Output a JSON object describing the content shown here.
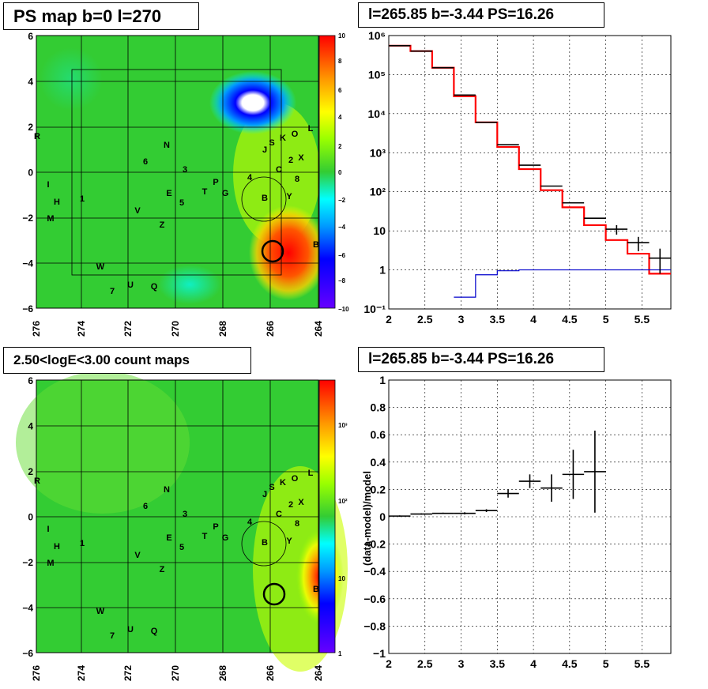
{
  "panels": {
    "tl_title": "PS map b=0 l=270",
    "tr_title": "l=265.85 b=-3.44 PS=16.26",
    "bl_title": "2.50<logE<3.00 count maps",
    "br_title": "l=265.85 b=-3.44 PS=16.26"
  },
  "maps": {
    "x_ticks": [
      "276",
      "274",
      "272",
      "270",
      "268",
      "266",
      "264"
    ],
    "y_ticks": [
      "6",
      "4",
      "2",
      "0",
      "−2",
      "−4",
      "−6"
    ],
    "colorbar_ts_ticks": [
      "10",
      "8",
      "6",
      "4",
      "2",
      "0",
      "−2",
      "−4",
      "−6",
      "−8",
      "−10"
    ],
    "colorbar_counts_ticks": [
      "10³",
      "10²",
      "10",
      "1"
    ],
    "source_labels": [
      "R",
      "I",
      "H",
      "M",
      "1",
      "N",
      "6",
      "3",
      "E",
      "5",
      "V",
      "Z",
      "W",
      "U",
      "7",
      "Q",
      "T",
      "P",
      "G",
      "4",
      "J",
      "S",
      "K",
      "O",
      "L",
      "2",
      "X",
      "C",
      "8",
      "Y",
      "B",
      "B"
    ],
    "colors": {
      "high": "#ff0000",
      "mid": "#33cc33",
      "low": "#3333ff",
      "zero": "#ffffff"
    }
  },
  "chart_data": [
    {
      "type": "line",
      "panel": "spectrum",
      "title": "l=265.85 b=-3.44 PS=16.26",
      "xlabel": "",
      "ylabel": "",
      "xlim": [
        2,
        5.9
      ],
      "ylim": [
        0.1,
        1000000
      ],
      "yscale": "log",
      "grid": true,
      "x_ticks": [
        "2",
        "2.5",
        "3",
        "3.5",
        "4",
        "4.5",
        "5",
        "5.5"
      ],
      "y_ticks": [
        "10⁻¹",
        "1",
        "10",
        "10²",
        "10³",
        "10⁴",
        "10⁵",
        "10⁶"
      ],
      "data_points": {
        "x": [
          2.15,
          2.45,
          2.75,
          3.05,
          3.35,
          3.65,
          3.95,
          4.25,
          4.55,
          4.85,
          5.15,
          5.45,
          5.75
        ],
        "y": [
          550000,
          400000,
          150000,
          30000,
          6000,
          1600,
          480,
          140,
          52,
          21,
          11,
          5,
          2
        ],
        "yerr_low": [
          0,
          0,
          0,
          0,
          0,
          0,
          0,
          0,
          0,
          0,
          3,
          2,
          1.2
        ],
        "yerr_high": [
          0,
          0,
          0,
          0,
          0,
          0,
          0,
          0,
          0,
          0,
          3,
          2,
          1.5
        ]
      },
      "series": [
        {
          "name": "",
          "color": "#ff0000",
          "step_x": [
            2.0,
            2.3,
            2.6,
            2.9,
            3.2,
            3.5,
            3.8,
            4.1,
            4.4,
            4.7,
            5.0,
            5.3,
            5.6,
            5.9
          ],
          "values": [
            550000,
            400000,
            150000,
            28000,
            6000,
            1400,
            380,
            110,
            40,
            14,
            5.8,
            2.6,
            0.8
          ]
        },
        {
          "name": "",
          "color": "#0000cc",
          "step_x": [
            2.9,
            3.2,
            3.5,
            3.8,
            5.9
          ],
          "values": [
            0.2,
            0.75,
            0.95,
            1.0
          ]
        }
      ]
    },
    {
      "type": "scatter",
      "panel": "residuals",
      "title": "l=265.85 b=-3.44 PS=16.26",
      "xlabel": "",
      "ylabel": "(data-model)/model",
      "xlim": [
        2,
        5.9
      ],
      "ylim": [
        -1,
        1
      ],
      "grid": true,
      "x_ticks": [
        "2",
        "2.5",
        "3",
        "3.5",
        "4",
        "4.5",
        "5",
        "5.5"
      ],
      "y_ticks": [
        "1",
        "0.8",
        "0.6",
        "0.4",
        "0.2",
        "0",
        "−0.2",
        "−0.4",
        "−0.6",
        "−0.8",
        "−1"
      ],
      "x": [
        2.15,
        2.45,
        2.75,
        3.05,
        3.35,
        3.65,
        3.95,
        4.25,
        4.55,
        4.85
      ],
      "y": [
        0.005,
        0.02,
        0.025,
        0.025,
        0.045,
        0.17,
        0.26,
        0.21,
        0.31,
        0.33
      ],
      "yerr": [
        0.005,
        0.005,
        0.005,
        0.008,
        0.01,
        0.03,
        0.05,
        0.1,
        0.18,
        0.3
      ]
    }
  ]
}
